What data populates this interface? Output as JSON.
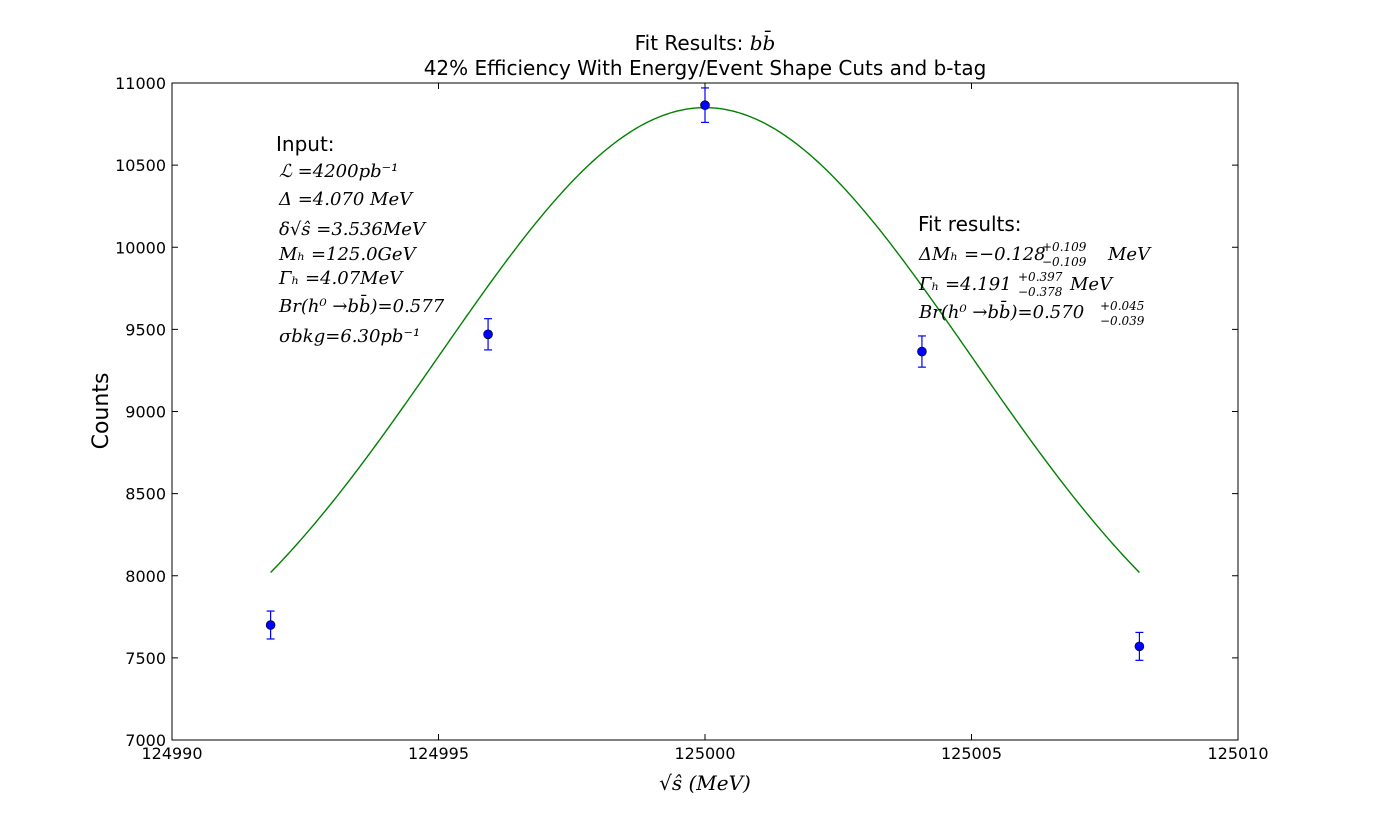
{
  "chart_data": {
    "type": "scatter",
    "title_line1": "Fit Results: ",
    "title_math": "bb̄",
    "title_line2": "42% Efficiency With Energy/Event Shape Cuts and b-tag",
    "xlabel": "√ŝ (MeV)",
    "ylabel": "Counts",
    "xlim": [
      124990,
      125010
    ],
    "ylim": [
      7000,
      11000
    ],
    "xticks": [
      124990,
      124995,
      125000,
      125005,
      125010
    ],
    "yticks": [
      7000,
      7500,
      8000,
      8500,
      9000,
      9500,
      10000,
      10500,
      11000
    ],
    "grid": false,
    "points": [
      {
        "x": 124991.85,
        "y": 7700,
        "err": 85
      },
      {
        "x": 124995.93,
        "y": 9470,
        "err": 95
      },
      {
        "x": 125000.0,
        "y": 10865,
        "err": 105
      },
      {
        "x": 125004.07,
        "y": 9365,
        "err": 95
      },
      {
        "x": 125008.15,
        "y": 7570,
        "err": 85
      }
    ],
    "fit": {
      "type": "gaussian",
      "baseline": 7000,
      "amplitude": 3850,
      "center": 125000.0,
      "sigma": 5.0
    },
    "colors": {
      "points": "#0000ff",
      "fit": "#008000"
    },
    "annotations": {
      "input": {
        "header": "Input:",
        "lines": [
          "ℒ =4200pb⁻¹",
          "Δ =4.070 MeV",
          "δ√ŝ =3.536MeV",
          "Mₕ =125.0GeV",
          "Γₕ =4.07MeV",
          "Br(h⁰ →bb̄)=0.577",
          "σbkg=6.30pb⁻¹"
        ]
      },
      "fit_results": {
        "header": "Fit results:",
        "lines": [
          {
            "main": "ΔMₕ =−0.128",
            "sup": "+0.109",
            "sub": "−0.109",
            "unit": "MeV"
          },
          {
            "main": "Γₕ =4.191",
            "sup": "+0.397",
            "sub": "−0.378",
            "unit": "MeV"
          },
          {
            "main": "Br(h⁰ →bb̄)=0.570",
            "sup": "+0.045",
            "sub": "−0.039",
            "unit": ""
          }
        ]
      }
    }
  }
}
